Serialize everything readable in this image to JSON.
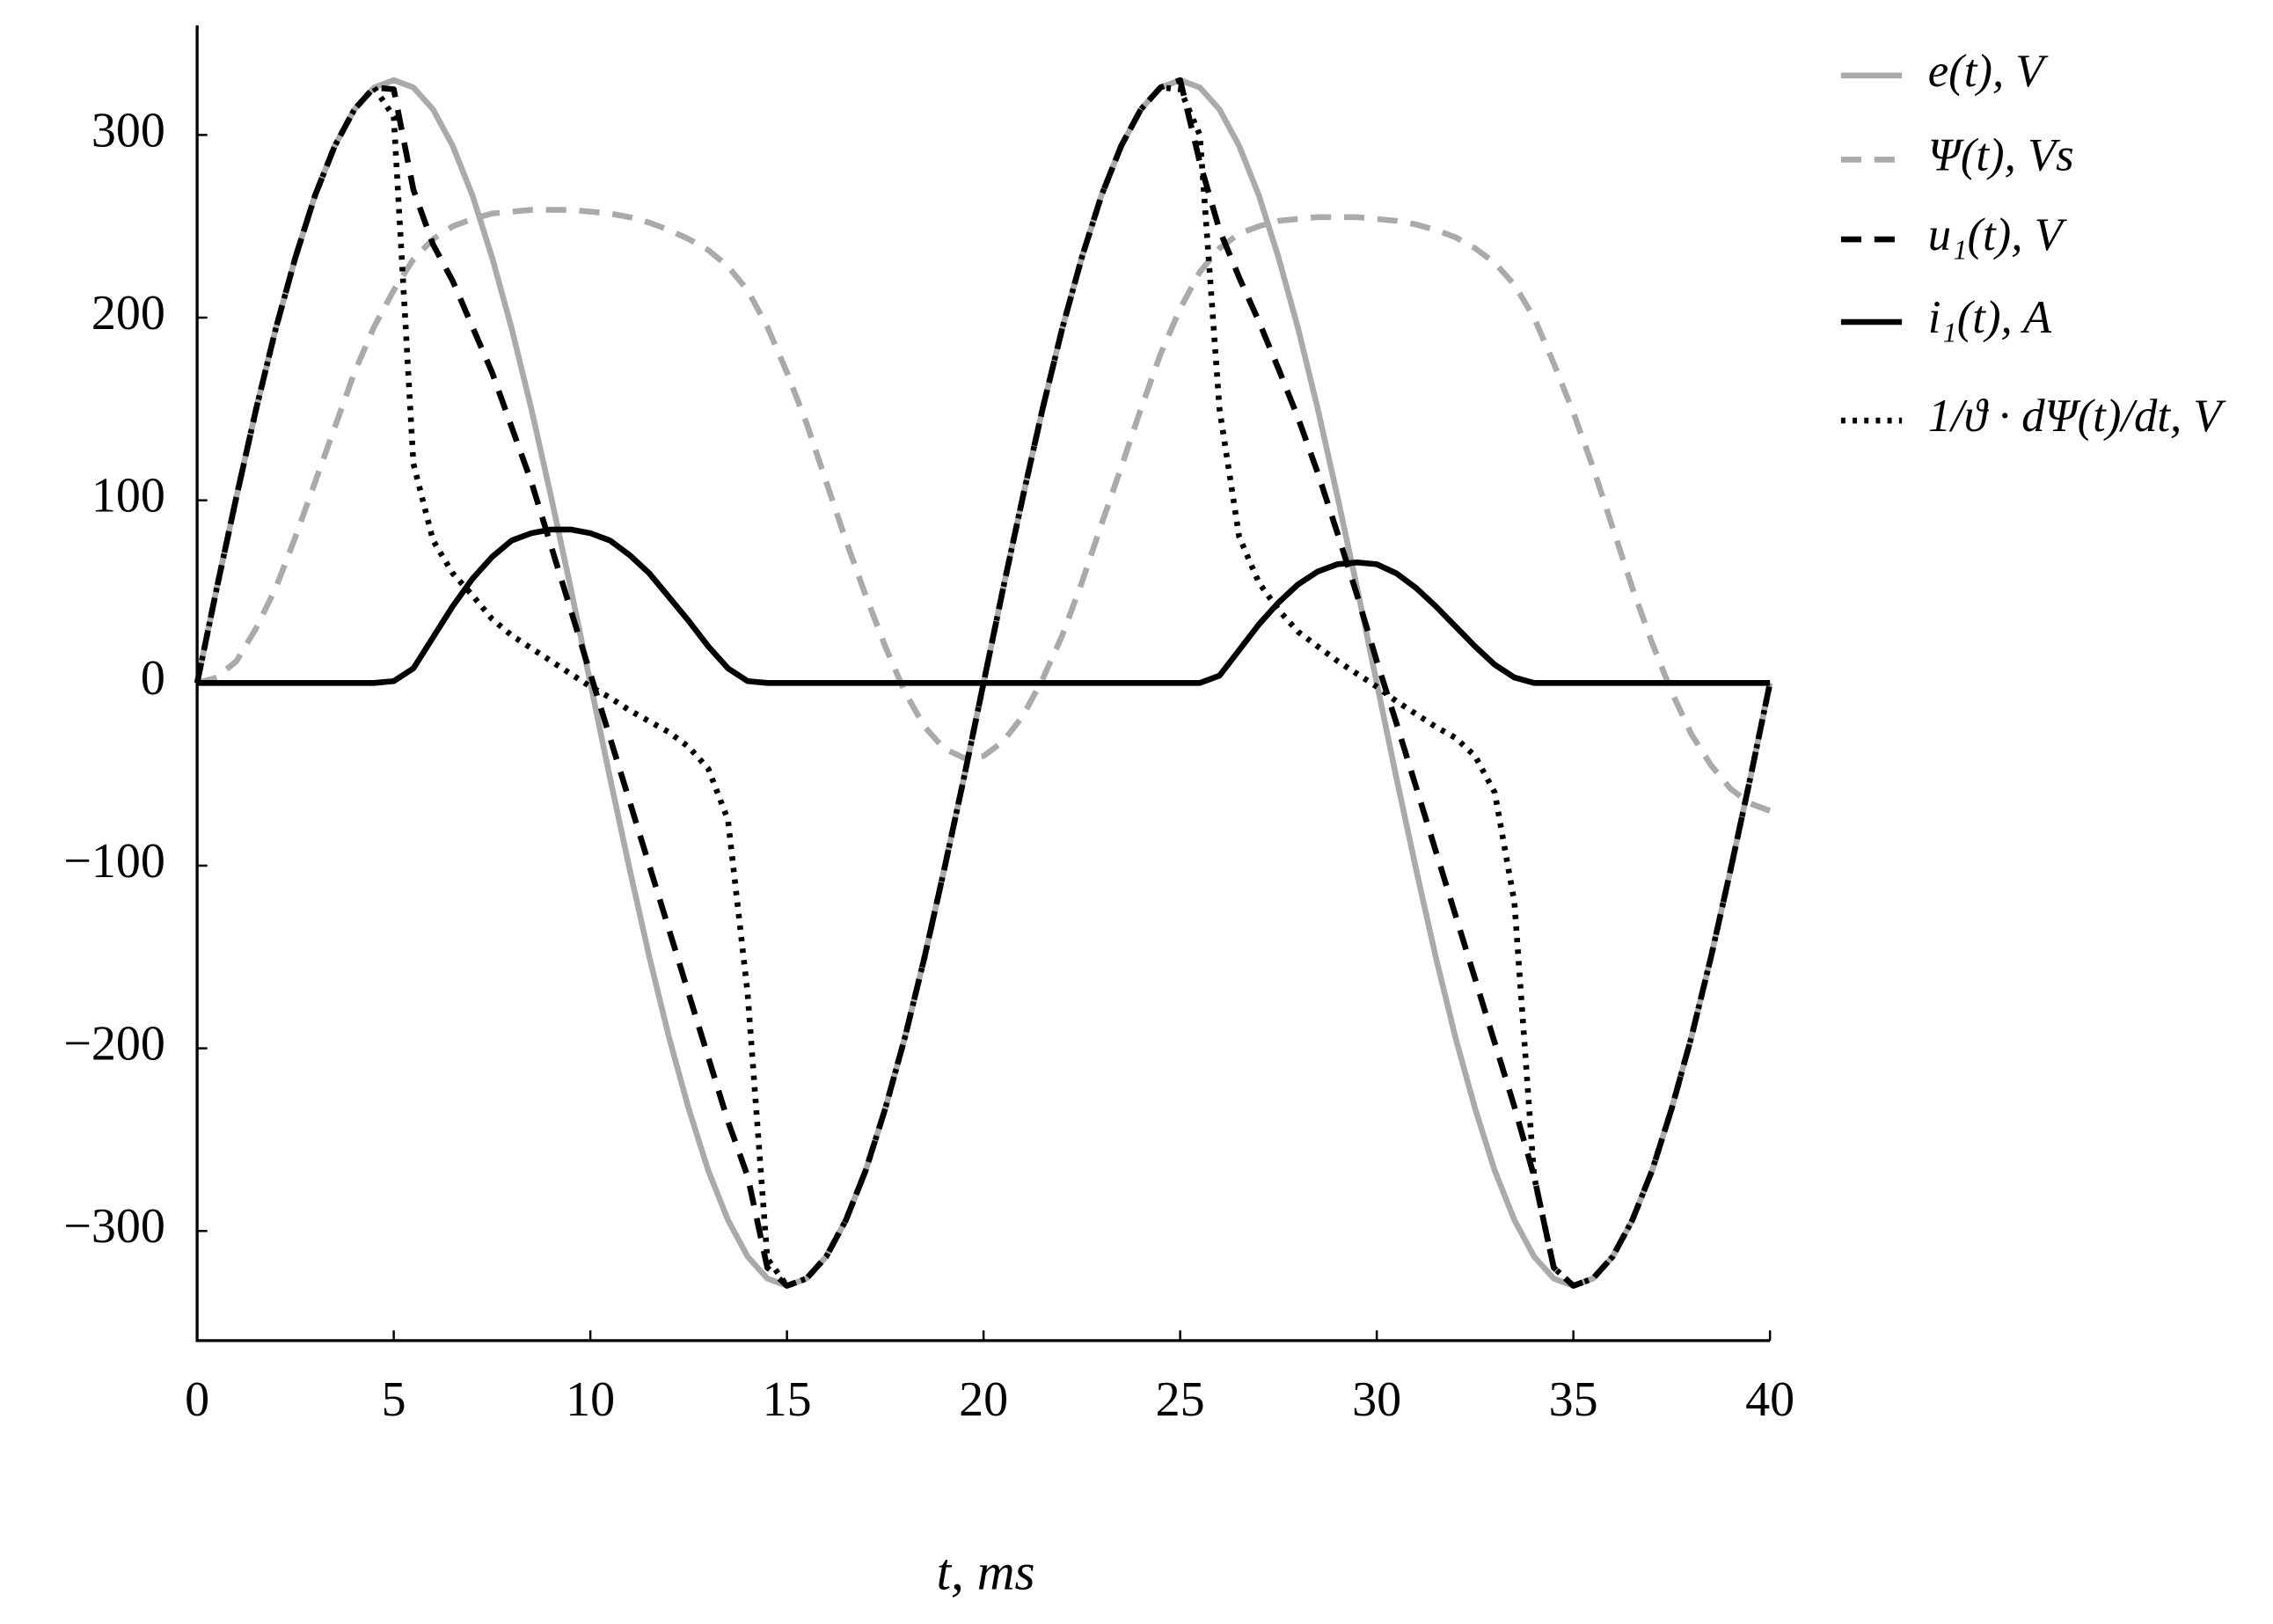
{
  "chart_data": {
    "type": "line",
    "x_label": "t, ms",
    "x": [
      0,
      0.5,
      1,
      1.5,
      2,
      2.5,
      3,
      3.5,
      4,
      4.5,
      5,
      5.5,
      6,
      6.5,
      7,
      7.5,
      8,
      8.5,
      9,
      9.5,
      10,
      10.5,
      11,
      11.5,
      12,
      12.5,
      13,
      13.5,
      14,
      14.5,
      15,
      15.5,
      16,
      16.5,
      17,
      17.5,
      18,
      18.5,
      19,
      19.5,
      20,
      20.5,
      21,
      21.5,
      22,
      22.5,
      23,
      23.5,
      24,
      24.5,
      25,
      25.5,
      26,
      26.5,
      27,
      27.5,
      28,
      28.5,
      29,
      29.5,
      30,
      30.5,
      31,
      31.5,
      32,
      32.5,
      33,
      33.5,
      34,
      34.5,
      35,
      35.5,
      36,
      36.5,
      37,
      37.5,
      38,
      38.5,
      39,
      39.5,
      40
    ],
    "series": [
      {
        "name": "e(t), V",
        "color": "#aaaaaa",
        "dash": "solid",
        "values": [
          0,
          52,
          102,
          150,
          194,
          233,
          267,
          294,
          314,
          326,
          330,
          326,
          314,
          294,
          267,
          233,
          194,
          150,
          102,
          52,
          0,
          -52,
          -102,
          -150,
          -194,
          -233,
          -267,
          -294,
          -314,
          -326,
          -330,
          -326,
          -314,
          -294,
          -267,
          -233,
          -194,
          -150,
          -102,
          -52,
          0,
          52,
          102,
          150,
          194,
          233,
          267,
          294,
          314,
          326,
          330,
          326,
          314,
          294,
          267,
          233,
          194,
          150,
          102,
          52,
          0,
          -52,
          -102,
          -150,
          -194,
          -233,
          -267,
          -294,
          -314,
          -326,
          -330,
          -326,
          -314,
          -294,
          -267,
          -233,
          -194,
          -150,
          -102,
          -52,
          0
        ]
      },
      {
        "name": "Ψ(t), Vs",
        "color": "#aaaaaa",
        "dash": "dashed",
        "values": [
          0,
          3,
          12,
          30,
          52,
          80,
          110,
          140,
          170,
          195,
          215,
          232,
          243,
          250,
          254,
          257,
          258,
          259,
          259,
          259,
          258,
          257,
          255,
          252,
          248,
          243,
          237,
          228,
          215,
          195,
          170,
          142,
          110,
          78,
          48,
          20,
          -5,
          -24,
          -36,
          -41,
          -40,
          -32,
          -18,
          2,
          26,
          55,
          87,
          118,
          150,
          180,
          205,
          225,
          238,
          246,
          250,
          253,
          254,
          255,
          255,
          255,
          254,
          253,
          251,
          248,
          244,
          238,
          230,
          218,
          200,
          175,
          148,
          118,
          85,
          52,
          22,
          -5,
          -28,
          -45,
          -58,
          -66,
          -70
        ]
      },
      {
        "name": "u₁(t), V",
        "color": "#000000",
        "dash": "dashed",
        "values": [
          0,
          52,
          102,
          150,
          194,
          233,
          267,
          294,
          314,
          326,
          325,
          270,
          240,
          220,
          195,
          170,
          140,
          110,
          75,
          40,
          5,
          -30,
          -65,
          -100,
          -135,
          -170,
          -205,
          -240,
          -270,
          -320,
          -330,
          -326,
          -314,
          -294,
          -267,
          -233,
          -194,
          -150,
          -102,
          -52,
          0,
          52,
          102,
          150,
          194,
          233,
          267,
          294,
          314,
          326,
          330,
          285,
          248,
          222,
          198,
          172,
          145,
          115,
          82,
          48,
          12,
          -22,
          -57,
          -92,
          -127,
          -162,
          -197,
          -232,
          -270,
          -320,
          -330,
          -326,
          -314,
          -294,
          -267,
          -233,
          -194,
          -150,
          -102,
          -52,
          0
        ]
      },
      {
        "name": "i₁(t), A",
        "color": "#000000",
        "dash": "solid",
        "values": [
          0,
          0,
          0,
          0,
          0,
          0,
          0,
          0,
          0,
          0,
          1,
          8,
          25,
          42,
          57,
          69,
          78,
          82,
          84,
          84,
          82,
          78,
          70,
          60,
          47,
          34,
          20,
          8,
          1,
          0,
          0,
          0,
          0,
          0,
          0,
          0,
          0,
          0,
          0,
          0,
          0,
          0,
          0,
          0,
          0,
          0,
          0,
          0,
          0,
          0,
          0,
          0,
          4,
          18,
          32,
          44,
          54,
          61,
          65,
          66,
          65,
          60,
          52,
          42,
          31,
          20,
          10,
          3,
          0,
          0,
          0,
          0,
          0,
          0,
          0,
          0,
          0,
          0,
          0,
          0,
          0
        ]
      },
      {
        "name": "1/ϑ · dΨ(t)/dt, V",
        "color": "#000000",
        "dash": "dotted",
        "values": [
          0,
          52,
          102,
          150,
          194,
          233,
          267,
          294,
          314,
          326,
          310,
          120,
          78,
          60,
          48,
          35,
          26,
          19,
          12,
          5,
          -2,
          -8,
          -15,
          -21,
          -27,
          -35,
          -47,
          -75,
          -170,
          -315,
          -330,
          -326,
          -314,
          -294,
          -267,
          -233,
          -194,
          -150,
          -102,
          -52,
          0,
          52,
          102,
          150,
          194,
          233,
          267,
          294,
          314,
          326,
          325,
          300,
          150,
          80,
          55,
          40,
          28,
          20,
          12,
          5,
          -2,
          -10,
          -17,
          -24,
          -30,
          -40,
          -60,
          -120,
          -270,
          -320,
          -330,
          -326,
          -314,
          -294,
          -267,
          -233,
          -194,
          -150,
          -102,
          -52,
          0
        ]
      }
    ],
    "xlim": [
      0,
      40
    ],
    "xticks": [
      0,
      5,
      10,
      15,
      20,
      25,
      30,
      35,
      40
    ],
    "ylim": [
      -360,
      360
    ],
    "yticks": [
      {
        "value": -300,
        "label": "−300"
      },
      {
        "value": -200,
        "label": "−200"
      },
      {
        "value": -100,
        "label": "−100"
      },
      0,
      100,
      200,
      300
    ],
    "grid": false,
    "legend": "outside-right"
  }
}
